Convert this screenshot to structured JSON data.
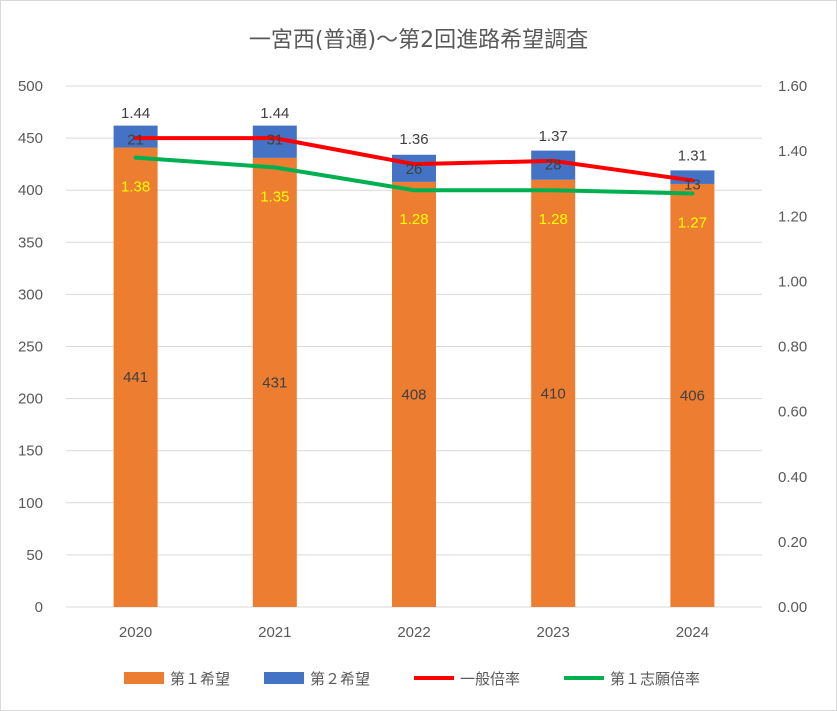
{
  "chart_data": {
    "type": "bar",
    "title": "一宮西(普通)～第2回進路希望調査",
    "categories": [
      "2020",
      "2021",
      "2022",
      "2023",
      "2024"
    ],
    "y_left": {
      "min": 0,
      "max": 500,
      "step": 50,
      "ticks": [
        "0",
        "50",
        "100",
        "150",
        "200",
        "250",
        "300",
        "350",
        "400",
        "450",
        "500"
      ]
    },
    "y_right": {
      "min": 0,
      "max": 1.6,
      "step": 0.2,
      "ticks": [
        "0.00",
        "0.20",
        "0.40",
        "0.60",
        "0.80",
        "1.00",
        "1.20",
        "1.40",
        "1.60"
      ]
    },
    "series": [
      {
        "name": "第１希望",
        "kind": "bar-stack",
        "color": "#ED7D31",
        "values": [
          441,
          431,
          408,
          410,
          406
        ],
        "labels": [
          "441",
          "431",
          "408",
          "410",
          "406"
        ],
        "label_color": "#404040"
      },
      {
        "name": "第２希望",
        "kind": "bar-stack",
        "color": "#4472C4",
        "values": [
          21,
          31,
          26,
          28,
          13
        ],
        "labels": [
          "21",
          "31",
          "26",
          "28",
          "13"
        ],
        "label_color": "#404040"
      },
      {
        "name": "一般倍率",
        "kind": "line",
        "axis": "right",
        "color": "#FF0000",
        "values": [
          1.44,
          1.44,
          1.36,
          1.37,
          1.31
        ],
        "labels": [
          "1.44",
          "1.44",
          "1.36",
          "1.37",
          "1.31"
        ],
        "label_color": "#404040"
      },
      {
        "name": "第１志願倍率",
        "kind": "line",
        "axis": "right",
        "color": "#00B050",
        "values": [
          1.38,
          1.35,
          1.28,
          1.28,
          1.27
        ],
        "labels": [
          "1.38",
          "1.35",
          "1.28",
          "1.28",
          "1.27"
        ],
        "label_color": "#FFFF00"
      }
    ],
    "grid": true,
    "legend_position": "bottom"
  }
}
